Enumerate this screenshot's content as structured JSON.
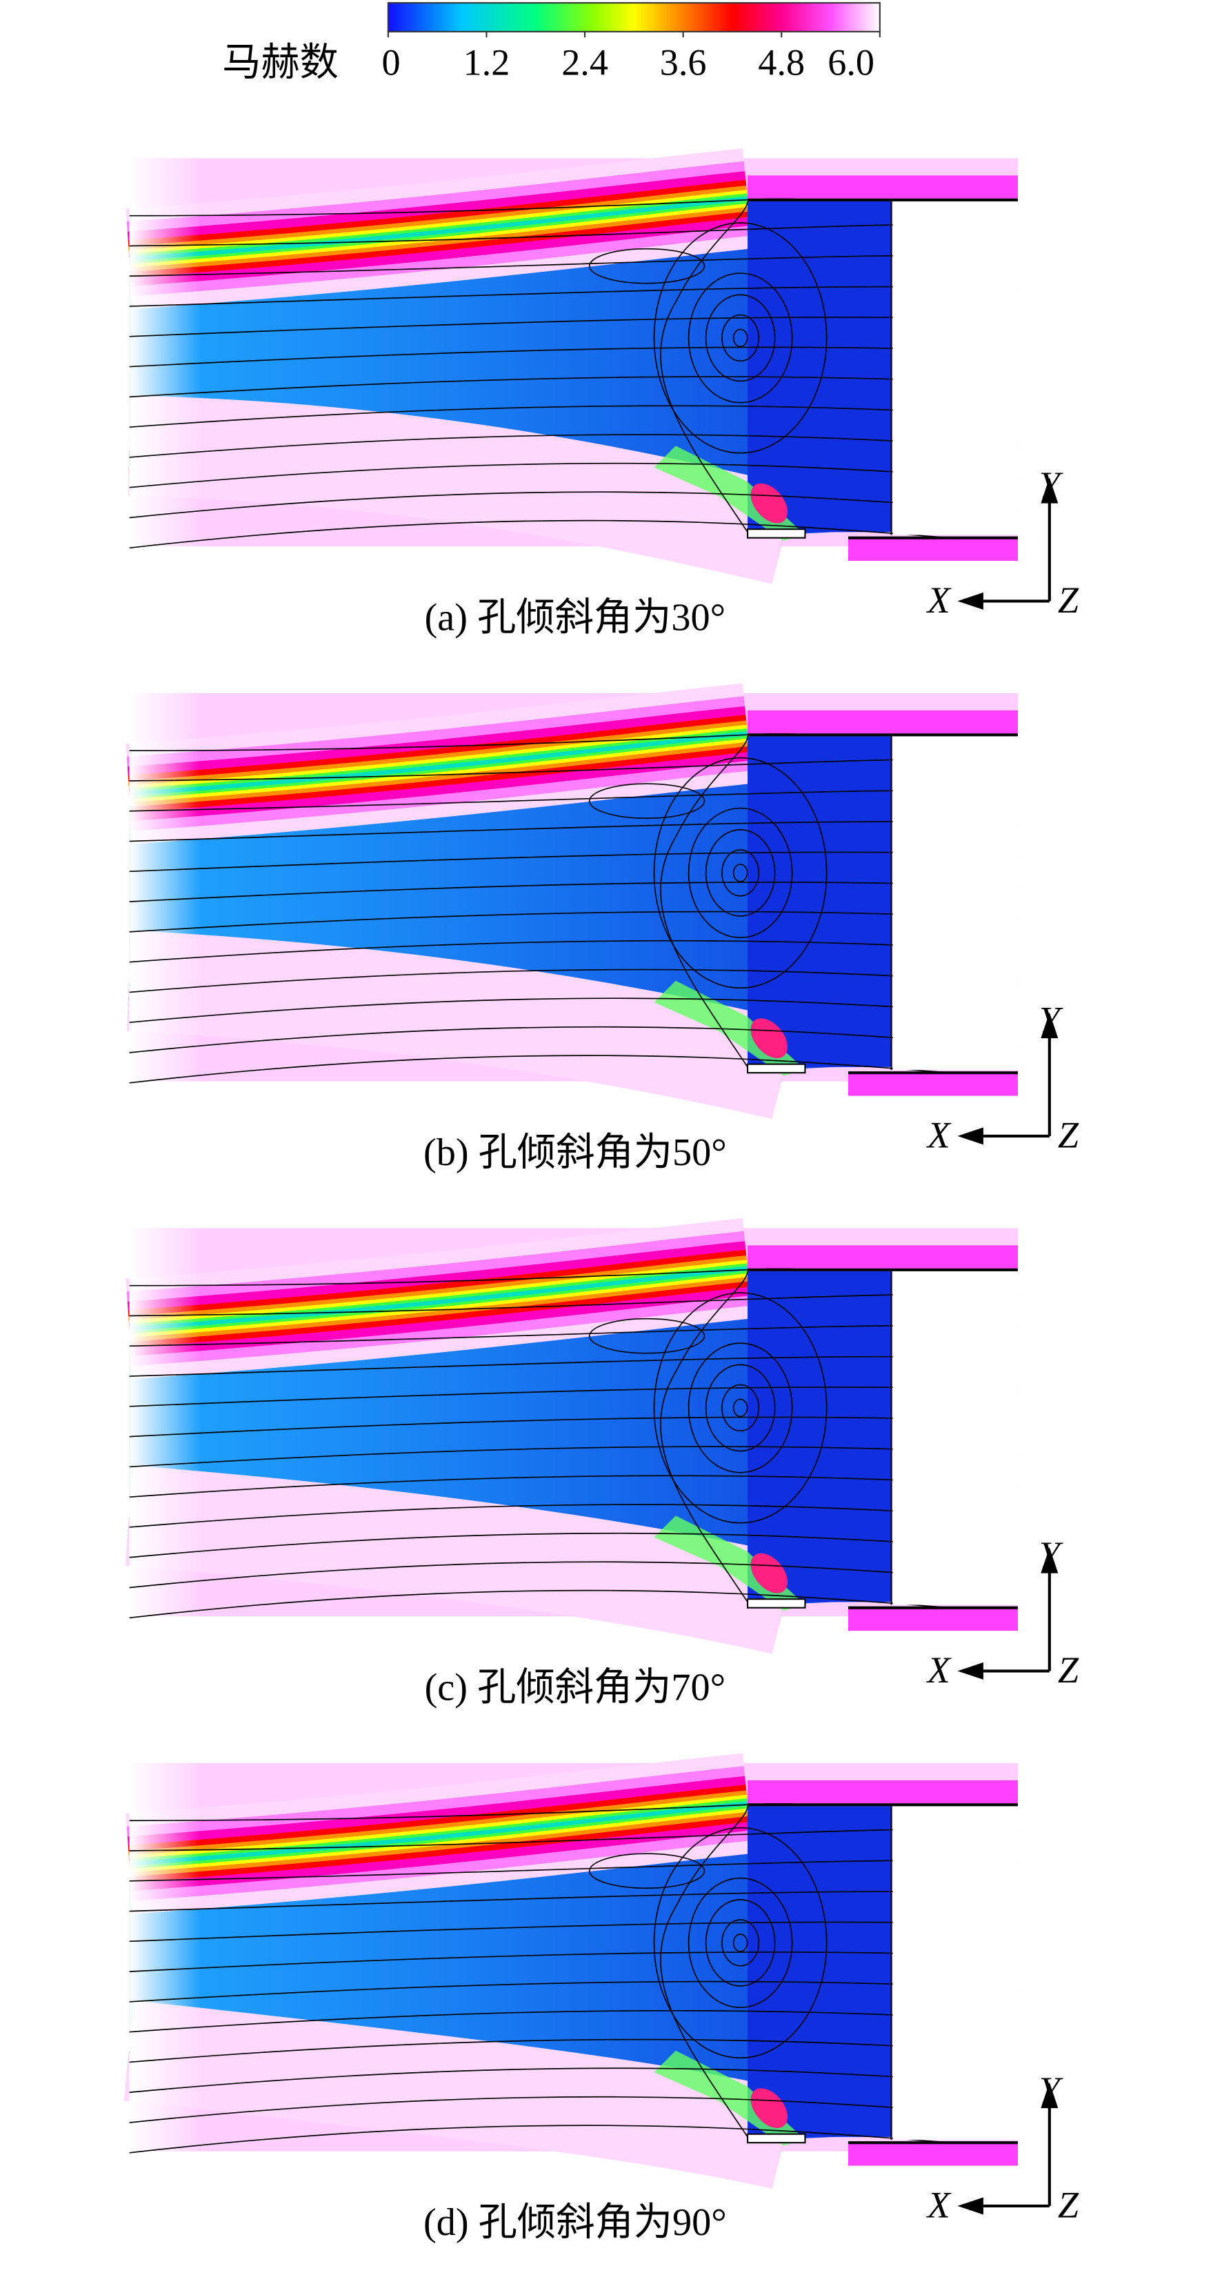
{
  "colorbar": {
    "label": "马赫数",
    "range": [
      0,
      6
    ],
    "ticks": [
      0,
      1.2,
      2.4,
      3.6,
      4.8,
      {
        "value": 6,
        "label": "6.0"
      }
    ]
  },
  "axes": {
    "x": "X",
    "y": "Y",
    "z": "Z"
  },
  "panels": [
    {
      "caption": "(a) 孔倾斜角为30°"
    },
    {
      "caption": "(b) 孔倾斜角为50°"
    },
    {
      "caption": "(c) 孔倾斜角为70°"
    },
    {
      "caption": "(d) 孔倾斜角为90°"
    }
  ]
}
